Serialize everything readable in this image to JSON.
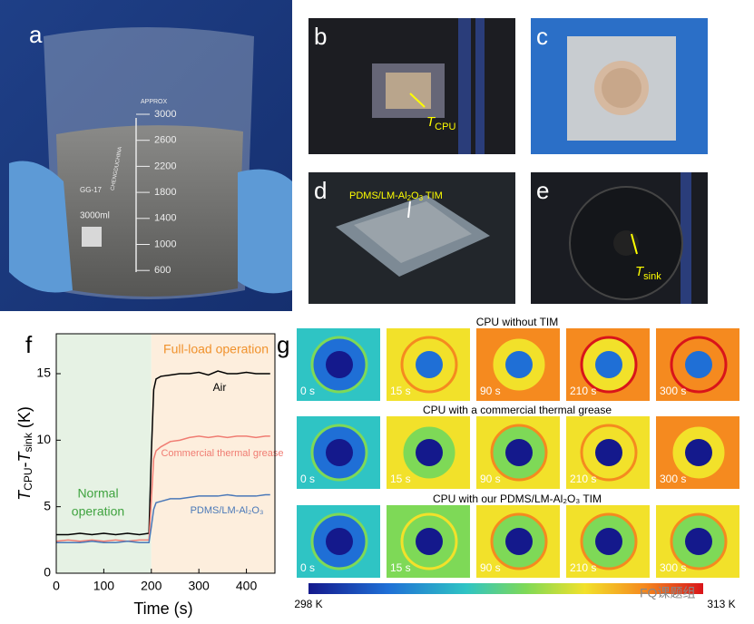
{
  "panel_a": {
    "label": "a",
    "graduations": [
      "3000",
      "2600",
      "2200",
      "1800",
      "1400",
      "1000",
      "600"
    ],
    "approx": "APPROX",
    "glass": "GG-17",
    "volume": "3000ml",
    "maker": "CHENGDUCHINA"
  },
  "panel_b": {
    "label": "b",
    "annotation": [
      "T",
      "CPU"
    ]
  },
  "panel_c": {
    "label": "c"
  },
  "panel_d": {
    "label": "d",
    "annotation": [
      "PDMS/LM-Al",
      "2",
      "O",
      "3",
      " TIM"
    ]
  },
  "panel_e": {
    "label": "e",
    "annotation": [
      "T",
      "sink"
    ]
  },
  "chart_data": {
    "type": "line",
    "label": "f",
    "xlabel": "Time (s)",
    "ylabel": [
      "T",
      "CPU",
      "-",
      "T",
      "sink",
      " (K)"
    ],
    "x": [
      0,
      25,
      50,
      75,
      100,
      125,
      150,
      175,
      195,
      200,
      205,
      210,
      220,
      240,
      260,
      280,
      300,
      320,
      340,
      360,
      380,
      400,
      420,
      440,
      450
    ],
    "series": [
      {
        "name": "Air",
        "color": "#000000",
        "values": [
          2.9,
          2.9,
          3.0,
          2.9,
          3.0,
          2.9,
          3.0,
          2.9,
          3.0,
          9.0,
          13.8,
          14.6,
          14.8,
          14.9,
          15.0,
          15.0,
          15.1,
          14.9,
          15.2,
          15.0,
          15.0,
          15.1,
          15.0,
          15.0,
          15.0
        ]
      },
      {
        "name": "Commercial thermal grease",
        "color": "#f07c72",
        "values": [
          2.4,
          2.5,
          2.4,
          2.5,
          2.4,
          2.5,
          2.4,
          2.5,
          2.5,
          5.5,
          8.6,
          9.2,
          9.5,
          9.9,
          10.0,
          10.2,
          10.3,
          10.2,
          10.3,
          10.2,
          10.3,
          10.3,
          10.2,
          10.3,
          10.3
        ]
      },
      {
        "name": "PDMS/LM-Al₂O₃",
        "color": "#4a78b8",
        "values": [
          2.3,
          2.3,
          2.3,
          2.4,
          2.3,
          2.3,
          2.4,
          2.3,
          2.3,
          3.5,
          4.8,
          5.3,
          5.4,
          5.6,
          5.6,
          5.7,
          5.8,
          5.8,
          5.8,
          5.9,
          5.8,
          5.8,
          5.8,
          5.9,
          5.9
        ]
      }
    ],
    "regions": [
      {
        "label": [
          "Normal",
          "operation"
        ],
        "from": 0,
        "to": 200,
        "color": "#e6f2e4",
        "text_color": "#3fa33f"
      },
      {
        "label": [
          "Full-load operation"
        ],
        "from": 200,
        "to": 460,
        "color": "#fdeedd",
        "text_color": "#f0922d"
      }
    ],
    "xlim": [
      0,
      460
    ],
    "ylim": [
      0,
      18
    ],
    "xticks": [
      0,
      100,
      200,
      300,
      400
    ],
    "yticks": [
      0,
      5,
      10,
      15
    ]
  },
  "panel_g": {
    "label": "g",
    "rows": [
      {
        "title": "CPU without TIM"
      },
      {
        "title": "CPU with a commercial thermal grease"
      },
      {
        "title": "CPU with our PDMS/LM-Al₂O₃ TIM"
      }
    ],
    "times": [
      "0 s",
      "15 s",
      "90 s",
      "210 s",
      "300 s"
    ],
    "colorbar": {
      "min": "298 K",
      "max": "313 K"
    },
    "watermark": "FQ课题组"
  }
}
